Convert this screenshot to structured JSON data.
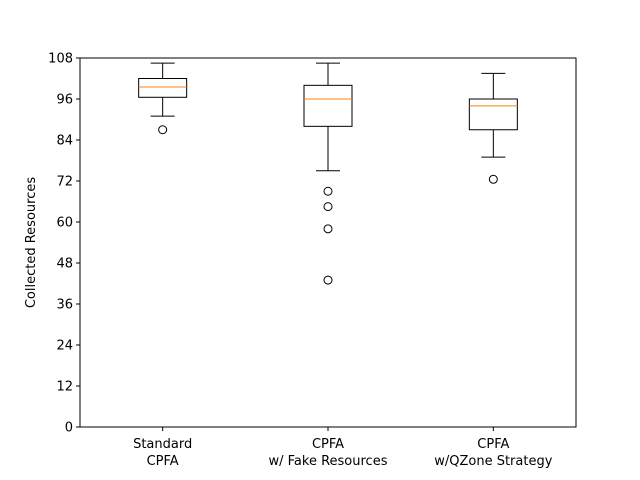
{
  "chart_data": {
    "type": "box",
    "ylabel": "Collected Resources",
    "ylim": [
      0,
      108
    ],
    "yticks": [
      0,
      12,
      24,
      36,
      48,
      60,
      72,
      84,
      96,
      108
    ],
    "categories": [
      [
        "Standard",
        "CPFA"
      ],
      [
        "CPFA",
        "w/ Fake Resources"
      ],
      [
        "CPFA",
        "w/QZone Strategy"
      ]
    ],
    "boxes": [
      {
        "q1": 96.5,
        "median": 99.5,
        "q3": 102.0,
        "whisker_low": 91.0,
        "whisker_high": 106.5,
        "outliers": [
          87.0
        ]
      },
      {
        "q1": 88.0,
        "median": 96.0,
        "q3": 100.0,
        "whisker_low": 75.0,
        "whisker_high": 106.5,
        "outliers": [
          69.0,
          64.5,
          58.0,
          43.0
        ]
      },
      {
        "q1": 87.0,
        "median": 94.0,
        "q3": 96.0,
        "whisker_low": 79.0,
        "whisker_high": 103.5,
        "outliers": [
          72.5
        ]
      }
    ],
    "colors": {
      "box": "#000000",
      "median": "#ff7f0e",
      "outlier": "#000000"
    }
  }
}
